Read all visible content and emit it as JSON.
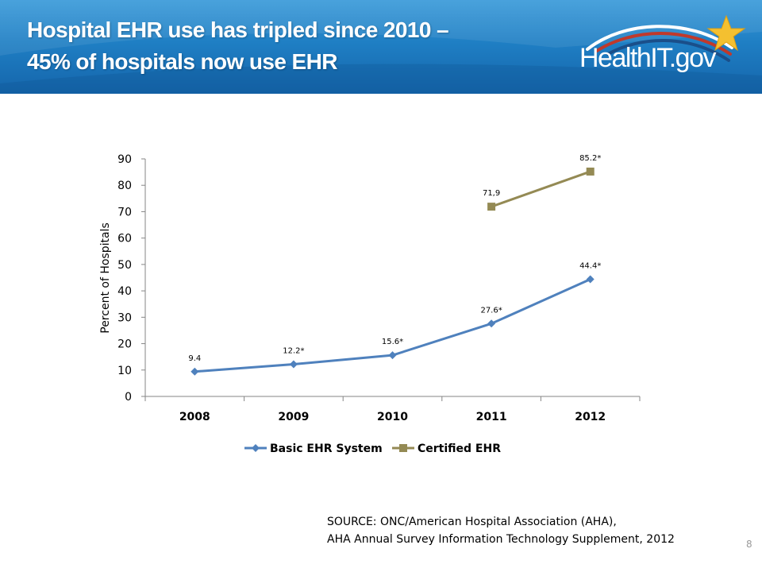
{
  "header": {
    "title_line1": "Hospital EHR use has tripled since 2010 –",
    "title_line2": "45% of hospitals now use EHR",
    "logo_text": "HealthIT.gov",
    "gradient_colors": [
      "#3a9ad9",
      "#1f7fc4",
      "#1565ab"
    ]
  },
  "chart_data": {
    "type": "line",
    "title": "",
    "xlabel": "",
    "ylabel": "Percent of Hospitals",
    "categories": [
      "2008",
      "2009",
      "2010",
      "2011",
      "2012"
    ],
    "ylim": [
      0,
      90
    ],
    "yticks": [
      0,
      10,
      20,
      30,
      40,
      50,
      60,
      70,
      80,
      90
    ],
    "grid": false,
    "legend": "bottom",
    "series": [
      {
        "name": "Basic EHR System",
        "values": [
          9.4,
          12.2,
          15.6,
          27.6,
          44.4
        ],
        "labels": [
          "9.4",
          "12.2*",
          "15.6*",
          "27.6*",
          "44.4*"
        ],
        "color": "#4f81bd",
        "marker": "diamond"
      },
      {
        "name": "Certified EHR",
        "values": [
          null,
          null,
          null,
          71.9,
          85.2
        ],
        "labels": [
          null,
          null,
          null,
          "71,9",
          "85.2*"
        ],
        "color": "#948a54",
        "marker": "square"
      }
    ]
  },
  "source": {
    "line1": "SOURCE: ONC/American Hospital Association (AHA),",
    "line2": "AHA Annual Survey Information Technology Supplement, 2012"
  },
  "page_number": "8"
}
